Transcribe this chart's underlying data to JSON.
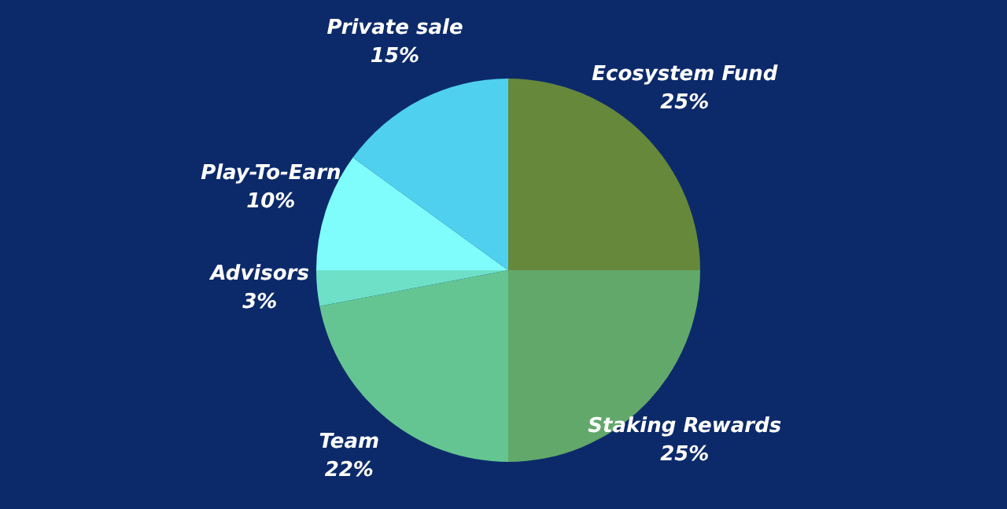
{
  "chart_data": {
    "type": "pie",
    "categories": [
      "Ecosystem Fund",
      "Staking Rewards",
      "Team",
      "Advisors",
      "Play-To-Earn",
      "Private sale"
    ],
    "values": [
      25,
      25,
      22,
      3,
      10,
      15
    ],
    "colors": [
      "#66883a",
      "#62a86a",
      "#64c592",
      "#6ee0c8",
      "#7ffcfc",
      "#4fd0ee"
    ],
    "value_labels": [
      "25%",
      "25%",
      "22%",
      "3%",
      "10%",
      "15%"
    ]
  }
}
